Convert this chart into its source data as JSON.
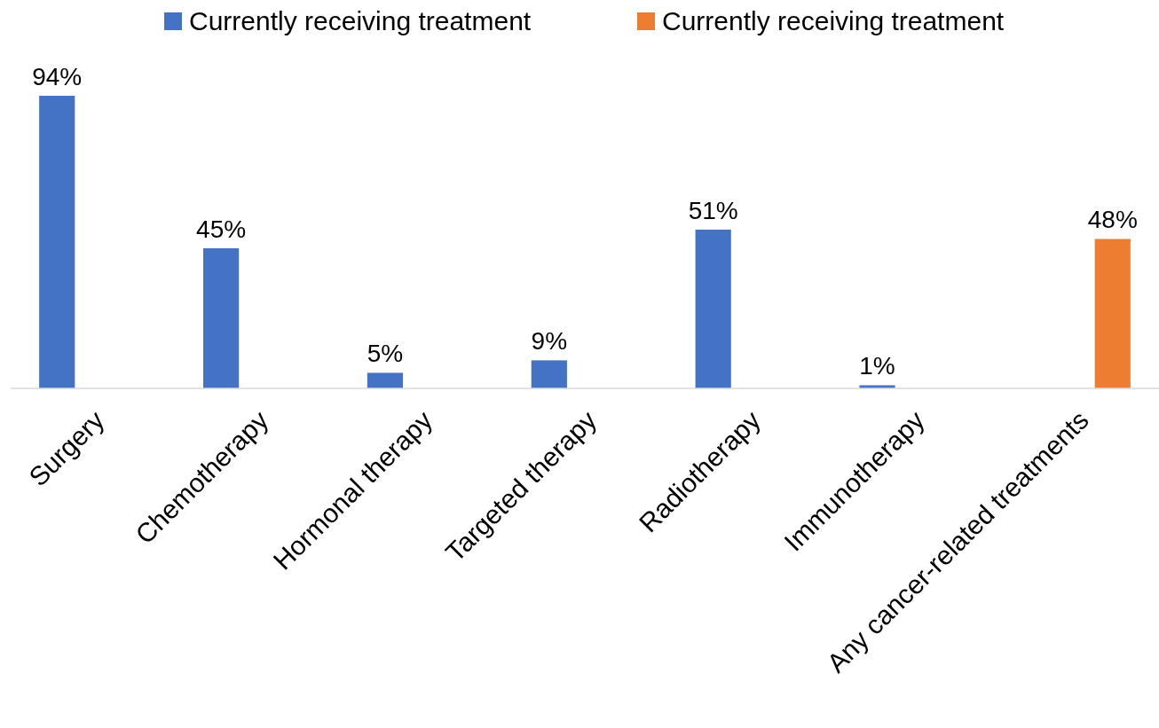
{
  "chart_data": {
    "type": "bar",
    "categories": [
      "Surgery",
      "Chemotherapy",
      "Hormonal therapy",
      "Targeted therapy",
      "Radiotherapy",
      "Immunotherapy",
      "Any cancer-related treatments"
    ],
    "series": [
      {
        "name": "Currently receiving treatment",
        "color": "#4472c4",
        "values": [
          94,
          45,
          5,
          9,
          51,
          1,
          null
        ],
        "value_labels": [
          "94%",
          "45%",
          "5%",
          "9%",
          "51%",
          "1%",
          null
        ]
      },
      {
        "name": "Currently receiving treatment",
        "color": "#ed7d31",
        "values": [
          null,
          null,
          null,
          null,
          null,
          null,
          48
        ],
        "value_labels": [
          null,
          null,
          null,
          null,
          null,
          null,
          "48%"
        ]
      }
    ],
    "legend": "top",
    "grid": false
  }
}
